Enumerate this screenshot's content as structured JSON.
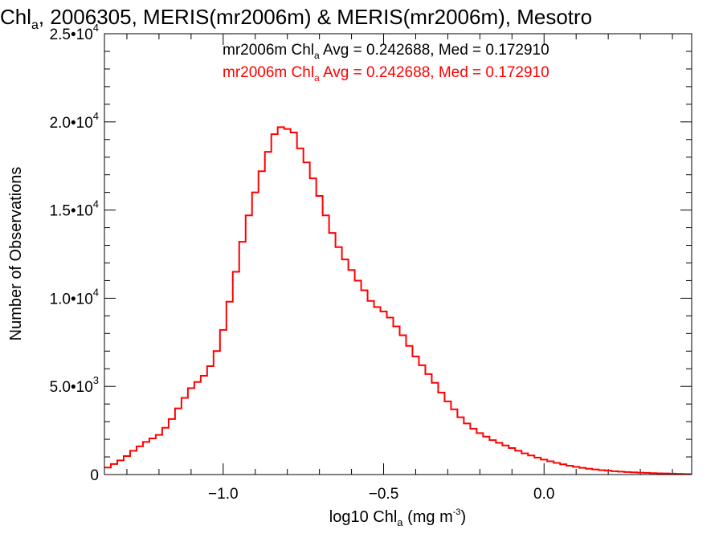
{
  "chart_data": {
    "type": "line",
    "title_main": "Chl",
    "title_sub": "a",
    "title_rest": ", 2006305, MERIS(mr2006m) & MERIS(mr2006m), Mesotro",
    "xlabel": {
      "main": "log10 Chl",
      "sub": "a",
      "unit": " (mg m",
      "sup": "-3",
      "close": ")"
    },
    "ylabel": "Number of Observations",
    "xlim": [
      -1.37,
      0.46
    ],
    "ylim": [
      0,
      25000
    ],
    "x_ticks": [
      {
        "value": -1.0,
        "label": "−1.0"
      },
      {
        "value": -0.5,
        "label": "−0.5"
      },
      {
        "value": 0.0,
        "label": "0.0"
      }
    ],
    "y_ticks": [
      {
        "value": 0,
        "mant": "0",
        "exp": ""
      },
      {
        "value": 5000,
        "mant": "5.0•10",
        "exp": "3"
      },
      {
        "value": 10000,
        "mant": "1.0•10",
        "exp": "4"
      },
      {
        "value": 15000,
        "mant": "1.5•10",
        "exp": "4"
      },
      {
        "value": 20000,
        "mant": "2.0•10",
        "exp": "4"
      },
      {
        "value": 25000,
        "mant": "2.5•10",
        "exp": "4"
      }
    ],
    "annotations": [
      {
        "pre": "mr2006m Chl",
        "sub": "a",
        "post": " Avg = 0.242688, Med = 0.172910",
        "color": "#000000"
      },
      {
        "pre": "mr2006m Chl",
        "sub": "a",
        "post": " Avg = 0.242688, Med = 0.172910",
        "color": "#ff0000"
      }
    ],
    "series": [
      {
        "color": "#ff0000",
        "step": true,
        "points": [
          [
            -1.37,
            400
          ],
          [
            -1.35,
            600
          ],
          [
            -1.33,
            800
          ],
          [
            -1.31,
            1050
          ],
          [
            -1.29,
            1350
          ],
          [
            -1.27,
            1600
          ],
          [
            -1.25,
            1850
          ],
          [
            -1.23,
            2050
          ],
          [
            -1.21,
            2250
          ],
          [
            -1.19,
            2650
          ],
          [
            -1.17,
            3150
          ],
          [
            -1.15,
            3750
          ],
          [
            -1.13,
            4350
          ],
          [
            -1.11,
            4900
          ],
          [
            -1.09,
            5250
          ],
          [
            -1.07,
            5600
          ],
          [
            -1.05,
            6150
          ],
          [
            -1.03,
            7000
          ],
          [
            -1.01,
            8200
          ],
          [
            -0.99,
            9800
          ],
          [
            -0.97,
            11500
          ],
          [
            -0.95,
            13200
          ],
          [
            -0.93,
            14700
          ],
          [
            -0.91,
            16000
          ],
          [
            -0.89,
            17200
          ],
          [
            -0.87,
            18300
          ],
          [
            -0.85,
            19300
          ],
          [
            -0.83,
            19700
          ],
          [
            -0.81,
            19600
          ],
          [
            -0.79,
            19400
          ],
          [
            -0.77,
            18500
          ],
          [
            -0.75,
            17700
          ],
          [
            -0.73,
            16800
          ],
          [
            -0.71,
            15800
          ],
          [
            -0.69,
            14700
          ],
          [
            -0.67,
            13700
          ],
          [
            -0.65,
            12900
          ],
          [
            -0.63,
            12200
          ],
          [
            -0.61,
            11600
          ],
          [
            -0.59,
            11000
          ],
          [
            -0.57,
            10450
          ],
          [
            -0.55,
            9850
          ],
          [
            -0.53,
            9500
          ],
          [
            -0.51,
            9250
          ],
          [
            -0.49,
            8900
          ],
          [
            -0.47,
            8400
          ],
          [
            -0.45,
            7900
          ],
          [
            -0.43,
            7300
          ],
          [
            -0.41,
            6700
          ],
          [
            -0.39,
            6200
          ],
          [
            -0.37,
            5700
          ],
          [
            -0.35,
            5200
          ],
          [
            -0.33,
            4650
          ],
          [
            -0.31,
            4150
          ],
          [
            -0.29,
            3700
          ],
          [
            -0.27,
            3250
          ],
          [
            -0.25,
            2900
          ],
          [
            -0.23,
            2600
          ],
          [
            -0.21,
            2350
          ],
          [
            -0.19,
            2150
          ],
          [
            -0.17,
            1950
          ],
          [
            -0.15,
            1800
          ],
          [
            -0.13,
            1650
          ],
          [
            -0.11,
            1500
          ],
          [
            -0.09,
            1350
          ],
          [
            -0.07,
            1200
          ],
          [
            -0.05,
            1080
          ],
          [
            -0.03,
            960
          ],
          [
            -0.01,
            850
          ],
          [
            0.01,
            750
          ],
          [
            0.03,
            660
          ],
          [
            0.05,
            580
          ],
          [
            0.07,
            500
          ],
          [
            0.09,
            440
          ],
          [
            0.11,
            380
          ],
          [
            0.13,
            330
          ],
          [
            0.15,
            290
          ],
          [
            0.17,
            250
          ],
          [
            0.19,
            220
          ],
          [
            0.21,
            190
          ],
          [
            0.23,
            165
          ],
          [
            0.25,
            145
          ],
          [
            0.27,
            125
          ],
          [
            0.29,
            110
          ],
          [
            0.31,
            95
          ],
          [
            0.33,
            82
          ],
          [
            0.35,
            70
          ],
          [
            0.37,
            60
          ],
          [
            0.39,
            50
          ],
          [
            0.41,
            40
          ],
          [
            0.43,
            30
          ],
          [
            0.45,
            20
          ]
        ]
      }
    ]
  }
}
